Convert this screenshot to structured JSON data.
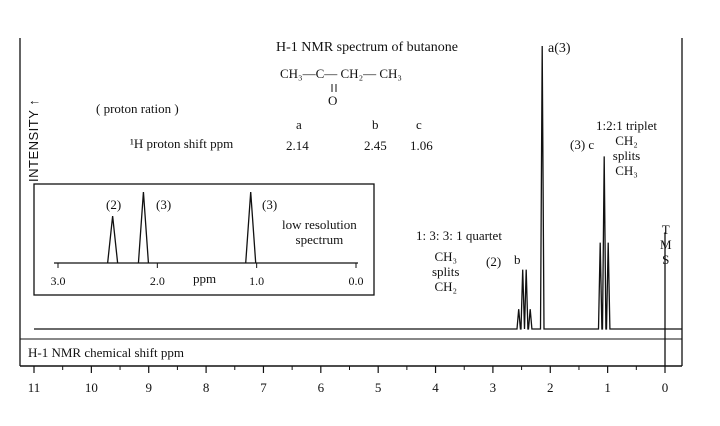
{
  "chart_data": [
    {
      "type": "line",
      "title": "H-1 NMR spectrum of butanone",
      "xlabel": "H-1 NMR chemical shift ppm",
      "ylabel": "INTENSITY ↑",
      "xlim": [
        11,
        0
      ],
      "x_ticks": [
        "11",
        "10",
        "9",
        "8",
        "7",
        "6",
        "5",
        "4",
        "3",
        "2",
        "1",
        "0"
      ],
      "grid": false,
      "peaks": [
        {
          "label": "a(3)",
          "shift": 2.14,
          "type": "singlet",
          "relative_height": 1.0
        },
        {
          "label": "b",
          "shift": 2.45,
          "type": "quartet",
          "relative_height": 0.21,
          "line_offsets": [
            -0.1,
            -0.03,
            0.03,
            0.1
          ],
          "line_ratios": [
            1,
            3,
            3,
            1
          ]
        },
        {
          "label": "(3) c",
          "shift": 1.06,
          "type": "triplet",
          "relative_height": 0.61,
          "line_offsets": [
            -0.07,
            0.0,
            0.07
          ],
          "line_ratios": [
            1,
            2,
            1
          ]
        },
        {
          "label": "T M S",
          "shift": 0.0,
          "type": "reference",
          "relative_height": 0.18
        }
      ]
    },
    {
      "type": "line",
      "title": "low resolution spectrum",
      "xlabel": "ppm",
      "xlim": [
        3.0,
        0.0
      ],
      "x_ticks": [
        "3.0",
        "2.0",
        "1.0",
        "0.0"
      ],
      "peaks": [
        {
          "label": "(2)",
          "shift": 2.45,
          "relative_height": 0.66
        },
        {
          "label": "(3)",
          "shift": 2.14,
          "relative_height": 1.0
        },
        {
          "label": "(3)",
          "shift": 1.06,
          "relative_height": 1.0
        }
      ]
    }
  ],
  "labels": {
    "title": "H-1 NMR spectrum of butanone",
    "formula_ch3_left": "CH₃",
    "formula_bond1": "—C—",
    "formula_ch2": "CH₂",
    "formula_bond2": "—",
    "formula_ch3_right": "CH₃",
    "formula_double_bond": "‖",
    "formula_oxygen": "O",
    "proton_ratio": "( proton ration )",
    "shift_row_label": "¹H proton shift ppm",
    "col_a": "a",
    "col_b": "b",
    "col_c": "c",
    "shift_a": "2.14",
    "shift_b": "2.45",
    "shift_c": "1.06",
    "peak_a": "a(3)",
    "peak_c": "(3) c",
    "peak_b_count": "(2)",
    "peak_b": "b",
    "triplet": "1:2:1 triplet",
    "triplet_ch2": "CH₂",
    "triplet_splits": "splits",
    "triplet_ch3": "CH₃",
    "quartet": "1: 3: 3: 1 quartet",
    "quartet_ch3": "CH₃",
    "quartet_splits": "splits",
    "quartet_ch2": "CH₂",
    "tms_t": "T",
    "tms_m": "M",
    "tms_s": "S",
    "ylabel": "INTENSITY ↑",
    "xlabel": "H-1 NMR chemical shift ppm",
    "inset_peak1": "(2)",
    "inset_peak2": "(3)",
    "inset_peak3": "(3)",
    "inset_title1": "low resolution",
    "inset_title2": "spectrum",
    "inset_xlabel": "ppm"
  }
}
